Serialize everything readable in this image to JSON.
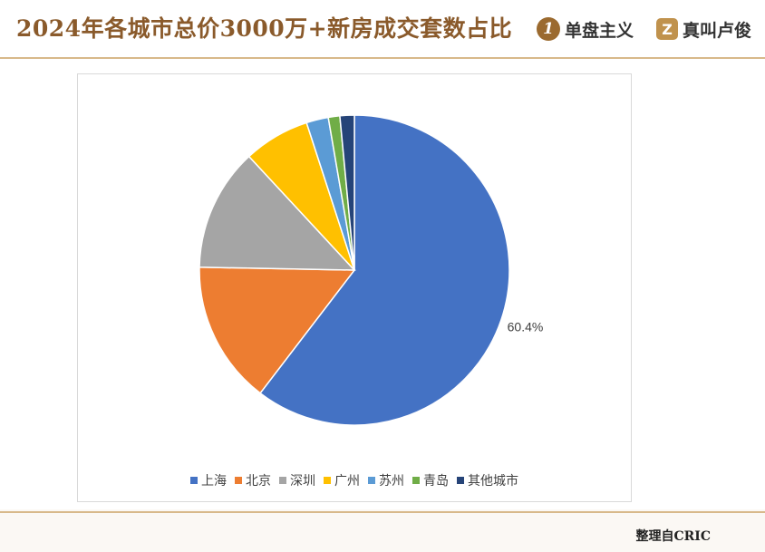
{
  "header": {
    "title": "2024年各城市总价3000万+新房成交套数占比",
    "brand1": {
      "icon": "1",
      "name": "单盘主义"
    },
    "brand2": {
      "icon": "Z",
      "name": "真叫卢俊"
    }
  },
  "footer": {
    "source": "整理自CRIC"
  },
  "chart_data": {
    "type": "pie",
    "title": "",
    "slices": [
      {
        "label": "上海",
        "value": 60.4,
        "color": "#4472C4",
        "show_label": true
      },
      {
        "label": "北京",
        "value": 14.9,
        "color": "#ED7D31",
        "show_label": false
      },
      {
        "label": "深圳",
        "value": 12.8,
        "color": "#A5A5A5",
        "show_label": false
      },
      {
        "label": "广州",
        "value": 6.9,
        "color": "#FFC000",
        "show_label": false
      },
      {
        "label": "苏州",
        "value": 2.3,
        "color": "#5B9BD5",
        "show_label": false
      },
      {
        "label": "青岛",
        "value": 1.2,
        "color": "#70AD47",
        "show_label": false
      },
      {
        "label": "其他城市",
        "value": 1.5,
        "color": "#264478",
        "show_label": false
      }
    ],
    "data_label_format": "0.0%",
    "start_angle": "12 o'clock",
    "direction": "clockwise",
    "legend_position": "bottom"
  }
}
